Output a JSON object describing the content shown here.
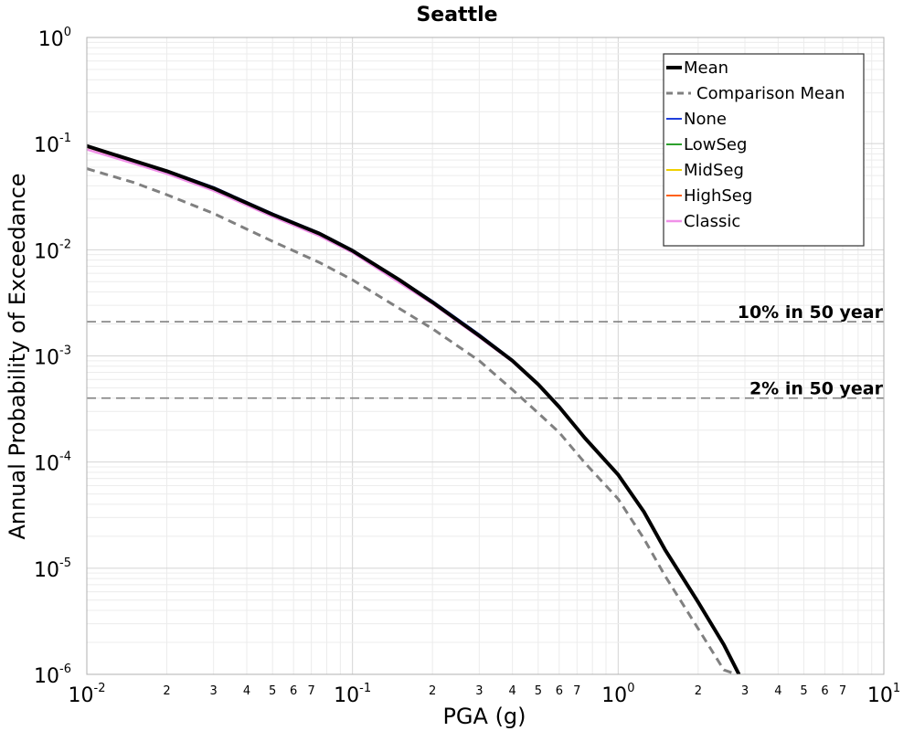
{
  "chart_data": {
    "type": "line",
    "title": "Seattle",
    "xlabel": "PGA (g)",
    "ylabel": "Annual Probability of Exceedance",
    "xscale": "log",
    "yscale": "log",
    "xlim": [
      0.01,
      10
    ],
    "ylim": [
      1e-06,
      1
    ],
    "grid": true,
    "legend_position": "top-right",
    "x_major_ticks": [
      {
        "base": "10",
        "exp": "-2"
      },
      {
        "base": "10",
        "exp": "-1"
      },
      {
        "base": "10",
        "exp": "0"
      },
      {
        "base": "10",
        "exp": "1"
      }
    ],
    "y_major_ticks": [
      {
        "base": "10",
        "exp": "0"
      },
      {
        "base": "10",
        "exp": "-1"
      },
      {
        "base": "10",
        "exp": "-2"
      },
      {
        "base": "10",
        "exp": "-3"
      },
      {
        "base": "10",
        "exp": "-4"
      },
      {
        "base": "10",
        "exp": "-5"
      },
      {
        "base": "10",
        "exp": "-6"
      }
    ],
    "x_minor_tick_labels": [
      "2",
      "3",
      "4",
      "5",
      "6",
      "7"
    ],
    "series": [
      {
        "name": "None",
        "color": "#1f3fdc",
        "width": 2,
        "dash": "",
        "x": [
          0.01,
          0.015,
          0.02,
          0.03,
          0.05,
          0.075,
          0.1,
          0.15,
          0.2,
          0.3,
          0.4,
          0.5,
          0.6,
          0.75,
          1.0,
          1.25,
          1.5,
          2.0,
          2.5,
          2.85
        ],
        "y": [
          0.096,
          0.07,
          0.056,
          0.039,
          0.022,
          0.0145,
          0.01,
          0.0053,
          0.0033,
          0.0016,
          0.00092,
          0.00055,
          0.00034,
          0.00017,
          7.7e-05,
          3.4e-05,
          1.5e-05,
          4.8e-06,
          1.9e-06,
          1e-06
        ]
      },
      {
        "name": "LowSeg",
        "color": "#2ca02c",
        "width": 2,
        "dash": "",
        "x": [
          0.01,
          0.015,
          0.02,
          0.03,
          0.05,
          0.075,
          0.1,
          0.15,
          0.2,
          0.3,
          0.4,
          0.5,
          0.6,
          0.75,
          1.0,
          1.25,
          1.5,
          2.0,
          2.5,
          2.85
        ],
        "y": [
          0.095,
          0.069,
          0.055,
          0.038,
          0.0215,
          0.0142,
          0.0098,
          0.0052,
          0.0032,
          0.00155,
          0.0009,
          0.00054,
          0.00033,
          0.000168,
          7.6e-05,
          3.4e-05,
          1.5e-05,
          4.8e-06,
          1.9e-06,
          1e-06
        ]
      },
      {
        "name": "MidSeg",
        "color": "#f0d000",
        "width": 2,
        "dash": "",
        "x": [
          0.01,
          0.015,
          0.02,
          0.03,
          0.05,
          0.075,
          0.1,
          0.15,
          0.2,
          0.3,
          0.4,
          0.5,
          0.6,
          0.75,
          1.0,
          1.25,
          1.5,
          2.0,
          2.5,
          2.85
        ],
        "y": [
          0.094,
          0.068,
          0.054,
          0.0375,
          0.021,
          0.014,
          0.0097,
          0.0051,
          0.0032,
          0.00154,
          0.00089,
          0.00054,
          0.00033,
          0.000167,
          7.6e-05,
          3.4e-05,
          1.5e-05,
          4.8e-06,
          1.9e-06,
          1e-06
        ]
      },
      {
        "name": "HighSeg",
        "color": "#ff6010",
        "width": 2,
        "dash": "",
        "x": [
          0.01,
          0.015,
          0.02,
          0.03,
          0.05,
          0.075,
          0.1,
          0.15,
          0.2,
          0.3,
          0.4,
          0.5,
          0.6,
          0.75,
          1.0,
          1.25,
          1.5,
          2.0,
          2.5,
          2.85
        ],
        "y": [
          0.093,
          0.067,
          0.053,
          0.037,
          0.0208,
          0.0138,
          0.0096,
          0.005,
          0.00315,
          0.00153,
          0.00089,
          0.00054,
          0.00033,
          0.000167,
          7.6e-05,
          3.4e-05,
          1.5e-05,
          4.8e-06,
          1.9e-06,
          1e-06
        ]
      },
      {
        "name": "Classic",
        "color": "#f090e8",
        "width": 2.5,
        "dash": "",
        "x": [
          0.01,
          0.015,
          0.02,
          0.03,
          0.05,
          0.075,
          0.1,
          0.15,
          0.2,
          0.3,
          0.4,
          0.5,
          0.6,
          0.75,
          1.0,
          1.25,
          1.5,
          2.0,
          2.5,
          2.85
        ],
        "y": [
          0.088,
          0.065,
          0.052,
          0.036,
          0.0205,
          0.0135,
          0.0094,
          0.0049,
          0.0031,
          0.0015,
          0.00088,
          0.00053,
          0.00033,
          0.000166,
          7.6e-05,
          3.4e-05,
          1.5e-05,
          4.8e-06,
          1.9e-06,
          1e-06
        ]
      },
      {
        "name": "Comparison Mean",
        "color": "#808080",
        "width": 3,
        "dash": "9,6",
        "x": [
          0.01,
          0.015,
          0.02,
          0.03,
          0.05,
          0.075,
          0.1,
          0.15,
          0.2,
          0.3,
          0.4,
          0.5,
          0.6,
          0.75,
          1.0,
          1.25,
          1.5,
          2.0,
          2.5,
          2.8
        ],
        "y": [
          0.058,
          0.043,
          0.033,
          0.022,
          0.012,
          0.0076,
          0.0052,
          0.0028,
          0.0018,
          0.0009,
          0.00048,
          0.00029,
          0.00019,
          9.8e-05,
          4.5e-05,
          1.9e-05,
          8.5e-06,
          2.7e-06,
          1.1e-06,
          1e-06
        ]
      },
      {
        "name": "Mean",
        "color": "#000000",
        "width": 4,
        "dash": "",
        "x": [
          0.01,
          0.015,
          0.02,
          0.03,
          0.05,
          0.075,
          0.1,
          0.15,
          0.2,
          0.3,
          0.4,
          0.5,
          0.6,
          0.75,
          1.0,
          1.25,
          1.5,
          2.0,
          2.5,
          2.85
        ],
        "y": [
          0.095,
          0.069,
          0.055,
          0.038,
          0.0215,
          0.0142,
          0.0098,
          0.0052,
          0.0032,
          0.00155,
          0.0009,
          0.00054,
          0.00033,
          0.000168,
          7.6e-05,
          3.4e-05,
          1.5e-05,
          4.8e-06,
          1.9e-06,
          1e-06
        ]
      }
    ],
    "legend_order": [
      "Mean",
      "Comparison Mean",
      "None",
      "LowSeg",
      "MidSeg",
      "HighSeg",
      "Classic"
    ],
    "reference_lines": [
      {
        "label": "10% in 50 year",
        "y": 0.0021,
        "color": "#808080"
      },
      {
        "label": "2% in 50 year",
        "y": 0.0004,
        "color": "#808080"
      }
    ]
  }
}
